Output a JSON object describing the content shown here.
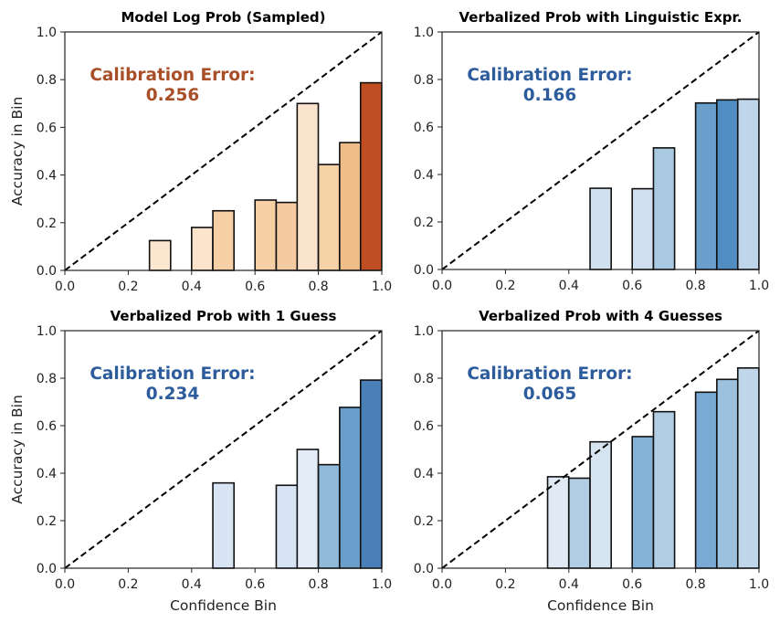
{
  "chart_data": [
    {
      "type": "bar",
      "title": "Model Log Prob (Sampled)",
      "xlabel": "",
      "ylabel": "Accuracy in Bin",
      "xlim": [
        0.0,
        1.0
      ],
      "ylim": [
        0.0,
        1.0
      ],
      "xticks": [
        "0.0",
        "0.2",
        "0.4",
        "0.6",
        "0.8",
        "1.0"
      ],
      "yticks": [
        "0.0",
        "0.2",
        "0.4",
        "0.6",
        "0.8",
        "1.0"
      ],
      "bin_width": 0.0667,
      "reference_line": "y = x (dashed)",
      "annotation": {
        "label": "Calibration Error:",
        "value": "0.256",
        "color": "#a84f28"
      },
      "bars": [
        {
          "bin_start": 0.267,
          "value": 0.125,
          "color": "#fbe6d0"
        },
        {
          "bin_start": 0.4,
          "value": 0.18,
          "color": "#fbe3cc"
        },
        {
          "bin_start": 0.467,
          "value": 0.25,
          "color": "#f6cfa4"
        },
        {
          "bin_start": 0.6,
          "value": 0.295,
          "color": "#f6cfa4"
        },
        {
          "bin_start": 0.667,
          "value": 0.285,
          "color": "#f4cba0"
        },
        {
          "bin_start": 0.733,
          "value": 0.7,
          "color": "#fbe4cd"
        },
        {
          "bin_start": 0.8,
          "value": 0.444,
          "color": "#f5d1a6"
        },
        {
          "bin_start": 0.867,
          "value": 0.536,
          "color": "#f0bd89"
        },
        {
          "bin_start": 0.933,
          "value": 0.787,
          "color": "#bf4f22"
        }
      ]
    },
    {
      "type": "bar",
      "title": "Verbalized Prob with Linguistic Expr.",
      "xlabel": "",
      "ylabel": "",
      "xlim": [
        0.0,
        1.0
      ],
      "ylim": [
        0.0,
        1.0
      ],
      "xticks": [
        "0.0",
        "0.2",
        "0.4",
        "0.6",
        "0.8",
        "1.0"
      ],
      "yticks": [
        "0.0",
        "0.2",
        "0.4",
        "0.6",
        "0.8",
        "1.0"
      ],
      "bin_width": 0.0667,
      "reference_line": "y = x (dashed)",
      "annotation": {
        "label": "Calibration Error:",
        "value": "0.166",
        "color": "#2d5c9c"
      },
      "bars": [
        {
          "bin_start": 0.467,
          "value": 0.342,
          "color": "#d1e0ef"
        },
        {
          "bin_start": 0.6,
          "value": 0.34,
          "color": "#d0dff0"
        },
        {
          "bin_start": 0.667,
          "value": 0.512,
          "color": "#a9c9e0"
        },
        {
          "bin_start": 0.8,
          "value": 0.701,
          "color": "#6a9fcc"
        },
        {
          "bin_start": 0.867,
          "value": 0.714,
          "color": "#508dc3"
        },
        {
          "bin_start": 0.933,
          "value": 0.717,
          "color": "#bed5ea"
        }
      ]
    },
    {
      "type": "bar",
      "title": "Verbalized Prob with 1 Guess",
      "xlabel": "Confidence Bin",
      "ylabel": "Accuracy in Bin",
      "xlim": [
        0.0,
        1.0
      ],
      "ylim": [
        0.0,
        1.0
      ],
      "xticks": [
        "0.0",
        "0.2",
        "0.4",
        "0.6",
        "0.8",
        "1.0"
      ],
      "yticks": [
        "0.0",
        "0.2",
        "0.4",
        "0.6",
        "0.8",
        "1.0"
      ],
      "bin_width": 0.0667,
      "reference_line": "y = x (dashed)",
      "annotation": {
        "label": "Calibration Error:",
        "value": "0.234",
        "color": "#2d5c9c"
      },
      "bars": [
        {
          "bin_start": 0.467,
          "value": 0.359,
          "color": "#d8e4f3"
        },
        {
          "bin_start": 0.667,
          "value": 0.349,
          "color": "#d8e4f3"
        },
        {
          "bin_start": 0.733,
          "value": 0.5,
          "color": "#e4ecf7"
        },
        {
          "bin_start": 0.8,
          "value": 0.436,
          "color": "#91b9da"
        },
        {
          "bin_start": 0.867,
          "value": 0.677,
          "color": "#6a9fcc"
        },
        {
          "bin_start": 0.933,
          "value": 0.792,
          "color": "#4a80b8"
        }
      ]
    },
    {
      "type": "bar",
      "title": "Verbalized Prob with 4 Guesses",
      "xlabel": "Confidence Bin",
      "ylabel": "",
      "xlim": [
        0.0,
        1.0
      ],
      "ylim": [
        0.0,
        1.0
      ],
      "xticks": [
        "0.0",
        "0.2",
        "0.4",
        "0.6",
        "0.8",
        "1.0"
      ],
      "yticks": [
        "0.0",
        "0.2",
        "0.4",
        "0.6",
        "0.8",
        "1.0"
      ],
      "bin_width": 0.0667,
      "reference_line": "y = x (dashed)",
      "annotation": {
        "label": "Calibration Error:",
        "value": "0.065",
        "color": "#2d5c9c"
      },
      "bars": [
        {
          "bin_start": 0.333,
          "value": 0.385,
          "color": "#e0eaf5"
        },
        {
          "bin_start": 0.4,
          "value": 0.379,
          "color": "#b0cde3"
        },
        {
          "bin_start": 0.467,
          "value": 0.532,
          "color": "#d6e3f1"
        },
        {
          "bin_start": 0.6,
          "value": 0.554,
          "color": "#85b3d8"
        },
        {
          "bin_start": 0.667,
          "value": 0.659,
          "color": "#b0cde3"
        },
        {
          "bin_start": 0.8,
          "value": 0.741,
          "color": "#79aad4"
        },
        {
          "bin_start": 0.867,
          "value": 0.795,
          "color": "#9bc1de"
        },
        {
          "bin_start": 0.933,
          "value": 0.843,
          "color": "#c0d6ea"
        }
      ]
    }
  ]
}
